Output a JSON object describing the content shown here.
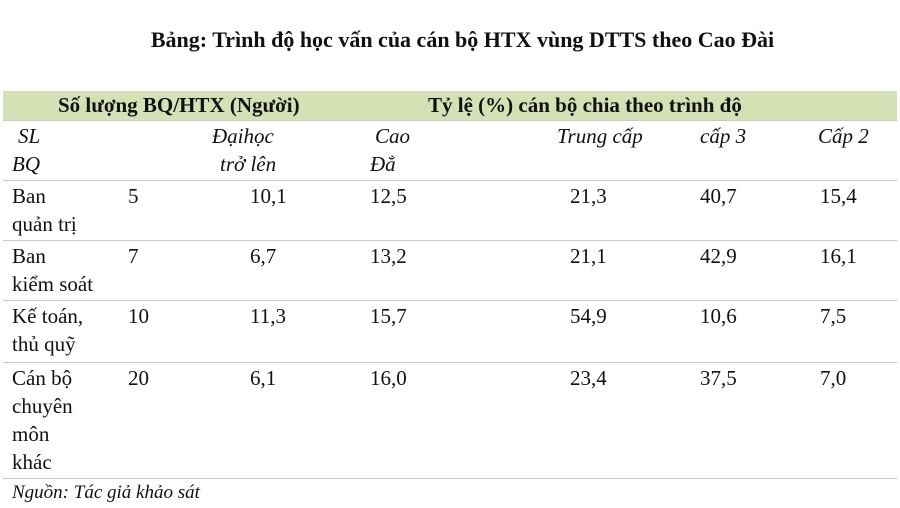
{
  "header": {
    "title": "Bảng: Trình độ học vấn của cán bộ HTX vùng DTTS theo Cao Đài"
  },
  "table": {
    "header": [
      "Số lượng BQ/HTX (Người)",
      "Tỷ lệ (%) cán bộ chia theo trình độ"
    ],
    "subheader": [
      [
        "SL",
        "BQ"
      ],
      [
        "Đạihọc",
        "trở lên"
      ],
      [
        "Cao",
        "Đẳ"
      ],
      [
        "Trung cấp"
      ],
      [
        "cấp 3"
      ],
      [
        "Cấp 2"
      ]
    ],
    "rows": [
      {
        "label": [
          "Ban",
          "quản trị"
        ],
        "values": [
          "5",
          "10,1",
          "12,5",
          "21,3",
          "40,7",
          "15,4"
        ]
      },
      {
        "label": [
          "Ban",
          "kiểm soát"
        ],
        "values": [
          "7",
          "6,7",
          "13,2",
          "21,1",
          "42,9",
          "16,1"
        ]
      },
      {
        "label": [
          "Kế toán,",
          "thủ quỹ"
        ],
        "values": [
          "10",
          "11,3",
          "15,7",
          "54,9",
          "10,6",
          "7,5"
        ]
      },
      {
        "label": [
          "Cán bộ",
          "chuyên",
          "môn",
          "khác"
        ],
        "values": [
          "20",
          "6,1",
          "16,0",
          "23,4",
          "37,5",
          "7,0"
        ]
      }
    ]
  },
  "footer": {
    "source": "Nguồn: Tác giả khảo sát"
  }
}
